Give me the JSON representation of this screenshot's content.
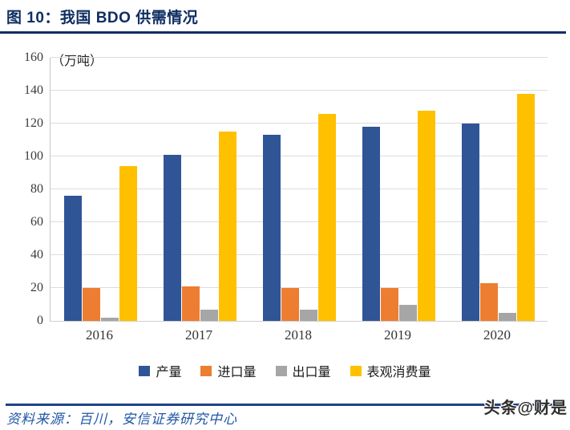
{
  "title": "图 10：我国 BDO 供需情况",
  "theme": {
    "title_color": "#0F2E62",
    "title_rule_color": "#0F2E62",
    "footer_rule_color": "#1D4289",
    "source_text_color": "#2257A8",
    "grid_color": "#DCDCDC",
    "background": "#FFFFFF"
  },
  "chart_data": {
    "type": "bar",
    "title": "我国 BDO 供需情况",
    "unit_label": "（万吨）",
    "categories": [
      "2016",
      "2017",
      "2018",
      "2019",
      "2020"
    ],
    "series": [
      {
        "name": "产量",
        "color": "#2F5596",
        "values": [
          76,
          101,
          113,
          118,
          120
        ]
      },
      {
        "name": "进口量",
        "color": "#ED7D31",
        "values": [
          20,
          21,
          20,
          20,
          23
        ]
      },
      {
        "name": "出口量",
        "color": "#A6A6A6",
        "values": [
          2,
          7,
          7,
          10,
          5
        ]
      },
      {
        "name": "表观消费量",
        "color": "#FFC000",
        "values": [
          94,
          115,
          126,
          128,
          138
        ]
      }
    ],
    "ylim": [
      0,
      160
    ],
    "ytick_step": 20,
    "grid": true,
    "legend_position": "bottom"
  },
  "footer": {
    "source_text": "资料来源：百川，安信证券研究中心"
  },
  "watermark": {
    "text": "头条@财是"
  }
}
